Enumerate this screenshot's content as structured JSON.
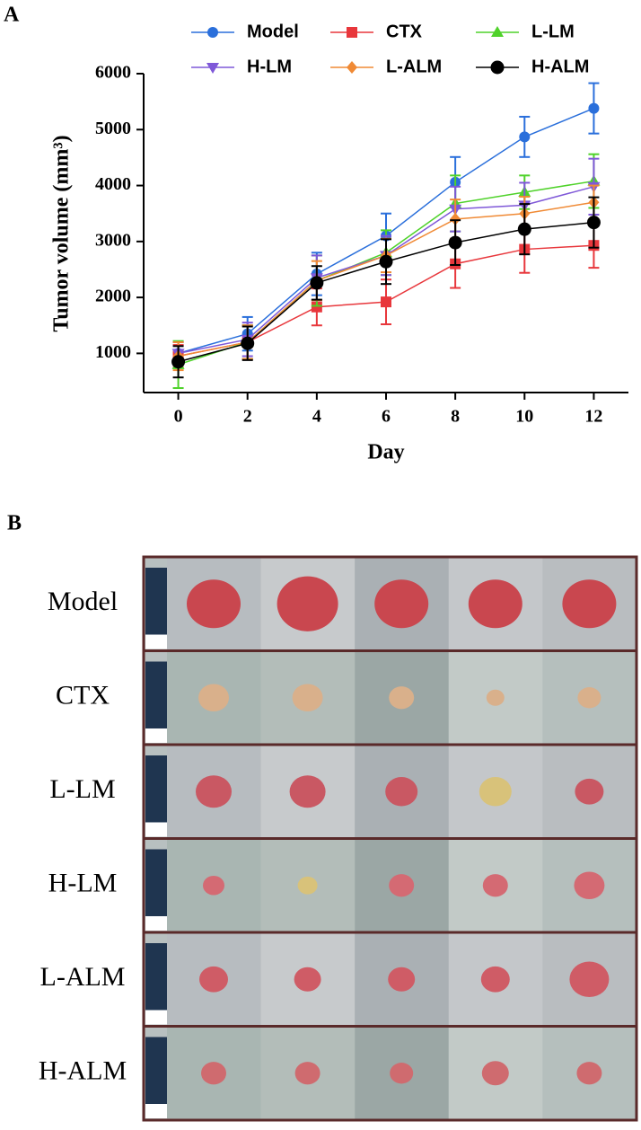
{
  "chart_data": {
    "type": "line",
    "panel_label": "A",
    "xlabel": "Day",
    "ylabel": "Tumor volume (mm³)",
    "x": [
      0,
      2,
      4,
      6,
      8,
      10,
      12
    ],
    "xlim": [
      -1,
      13
    ],
    "xticks": [
      0,
      2,
      4,
      6,
      8,
      10,
      12
    ],
    "ylim": [
      300,
      6000
    ],
    "yticks": [
      1000,
      2000,
      3000,
      4000,
      5000,
      6000
    ],
    "series": [
      {
        "name": "Model",
        "color": "#2a6fdb",
        "marker": "circle",
        "values": [
          1000,
          1350,
          2420,
          3100,
          4060,
          4870,
          5380
        ],
        "errors": [
          200,
          300,
          380,
          400,
          450,
          360,
          450
        ]
      },
      {
        "name": "CTX",
        "color": "#e8373c",
        "marker": "square",
        "values": [
          950,
          1200,
          1830,
          1920,
          2600,
          2860,
          2930
        ],
        "errors": [
          200,
          300,
          330,
          400,
          430,
          420,
          400
        ]
      },
      {
        "name": "L-LM",
        "color": "#4fd22a",
        "marker": "triangle-up",
        "values": [
          800,
          1200,
          2300,
          2800,
          3680,
          3880,
          4080
        ],
        "errors": [
          420,
          300,
          450,
          400,
          500,
          300,
          480
        ]
      },
      {
        "name": "H-LM",
        "color": "#7f58d8",
        "marker": "triangle-down",
        "values": [
          1000,
          1250,
          2350,
          2750,
          3580,
          3650,
          3980
        ],
        "errors": [
          200,
          300,
          400,
          350,
          400,
          400,
          500
        ]
      },
      {
        "name": "L-ALM",
        "color": "#f08a35",
        "marker": "diamond",
        "values": [
          950,
          1200,
          2300,
          2750,
          3400,
          3500,
          3700
        ],
        "errors": [
          250,
          300,
          350,
          300,
          350,
          300,
          300
        ]
      },
      {
        "name": "H-ALM",
        "color": "#000000",
        "marker": "big-circle",
        "values": [
          850,
          1180,
          2260,
          2640,
          2980,
          3220,
          3340
        ],
        "errors": [
          280,
          300,
          300,
          400,
          400,
          450,
          450
        ]
      }
    ]
  },
  "photo_panel": {
    "label": "B",
    "rows": [
      "Model",
      "CTX",
      "L-LM",
      "H-LM",
      "L-ALM",
      "H-ALM"
    ]
  }
}
